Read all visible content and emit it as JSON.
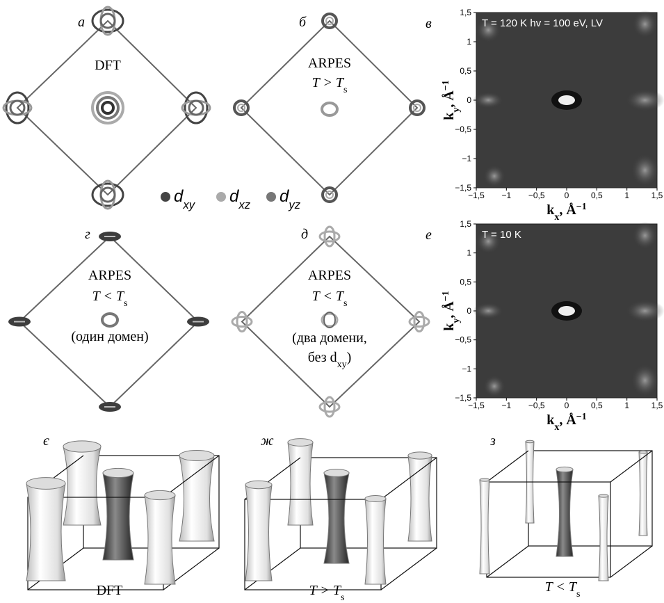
{
  "panels": [
    {
      "label": "а",
      "lines": [
        {
          "main": "DFT",
          "sub": ""
        }
      ]
    },
    {
      "label": "б",
      "lines": [
        {
          "main": "ARPES",
          "sub": ""
        },
        {
          "main": "T > T",
          "sub": "s"
        }
      ]
    },
    {
      "label": "г",
      "lines": [
        {
          "main": "ARPES",
          "sub": ""
        },
        {
          "main": "T < T",
          "sub": "s"
        },
        {
          "main": "(один домен)",
          "sub": ""
        }
      ]
    },
    {
      "label": "д",
      "lines": [
        {
          "main": "ARPES",
          "sub": ""
        },
        {
          "main": "T < T",
          "sub": "s"
        },
        {
          "main": "(два домени,",
          "sub": ""
        },
        {
          "main": "без d",
          "sub": "xy",
          "tail": ")"
        }
      ]
    }
  ],
  "legend": [
    {
      "symbol": "d",
      "sub": "xy"
    },
    {
      "symbol": "d",
      "sub": "xz"
    },
    {
      "symbol": "d",
      "sub": "yz"
    }
  ],
  "maps": [
    {
      "label": "в",
      "note": "T = 120 K  hv = 100 eV, LV"
    },
    {
      "label": "е",
      "note": "T = 10 K"
    }
  ],
  "map_axis": {
    "lim": [
      -1.5,
      1.5
    ],
    "ticks": [
      {
        "value": -1.5,
        "label": "−1,5"
      },
      {
        "value": -1,
        "label": "−1"
      },
      {
        "value": -0.5,
        "label": "−0,5"
      },
      {
        "value": 0,
        "label": "0"
      },
      {
        "value": 0.5,
        "label": "0,5"
      },
      {
        "value": 1,
        "label": "1"
      },
      {
        "value": 1.5,
        "label": "1,5"
      }
    ],
    "xlabel": {
      "k": "k",
      "sub": "x",
      "unit": ", Å",
      "sup": "−1"
    },
    "ylabel": {
      "k": "k",
      "sub": "y",
      "unit": ", Å",
      "sup": "−1"
    }
  },
  "boxes": [
    {
      "label": "є",
      "caption": {
        "main": "DFT",
        "sub": ""
      }
    },
    {
      "label": "ж",
      "caption": {
        "main": "T > T",
        "sub": "s"
      }
    },
    {
      "label": "з",
      "caption": {
        "main": "T < T",
        "sub": "s"
      }
    }
  ]
}
